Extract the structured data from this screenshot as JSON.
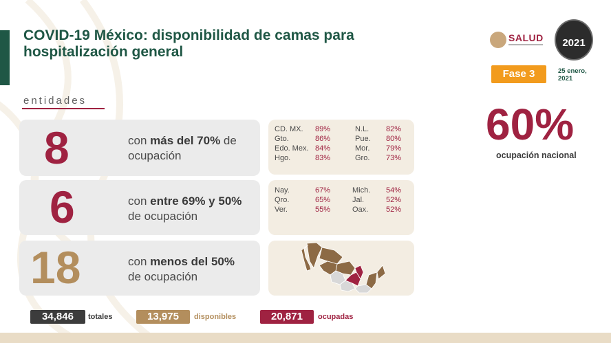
{
  "header": {
    "title_line1": "COVID-19 México: disponibilidad de camas para",
    "title_line2": "hospitalización general",
    "section_label": "entidades"
  },
  "logos": {
    "salud": "SALUD",
    "seal_year": "2021"
  },
  "phase": {
    "label": "Fase 3"
  },
  "date": {
    "line1": "25 enero,",
    "line2": "2021"
  },
  "national": {
    "value": "60%",
    "label": "ocupación nacional"
  },
  "rows": [
    {
      "count": "8",
      "count_color": "#9f2241",
      "text_pre": "con ",
      "text_bold": "más del 70%",
      "text_post": " de",
      "text_line2": "ocupación",
      "states_left": [
        {
          "name": "CD. MX.",
          "pct": "89%"
        },
        {
          "name": "Gto.",
          "pct": "86%"
        },
        {
          "name": "Edo. Mex.",
          "pct": "84%"
        },
        {
          "name": "Hgo.",
          "pct": "83%"
        }
      ],
      "states_right": [
        {
          "name": "N.L.",
          "pct": "82%"
        },
        {
          "name": "Pue.",
          "pct": "80%"
        },
        {
          "name": "Mor.",
          "pct": "79%"
        },
        {
          "name": "Gro.",
          "pct": "73%"
        }
      ]
    },
    {
      "count": "6",
      "count_color": "#9f2241",
      "text_pre": "con ",
      "text_bold": "entre 69% y 50%",
      "text_post": "",
      "text_line2": "de ocupación",
      "states_left": [
        {
          "name": "Nay.",
          "pct": "67%"
        },
        {
          "name": "Qro.",
          "pct": "65%"
        },
        {
          "name": "Ver.",
          "pct": "55%"
        }
      ],
      "states_right": [
        {
          "name": "Mich.",
          "pct": "54%"
        },
        {
          "name": "Jal.",
          "pct": "52%"
        },
        {
          "name": "Oax.",
          "pct": "52%"
        }
      ]
    },
    {
      "count": "18",
      "count_color": "#b38e5d",
      "text_pre": "con ",
      "text_bold": "menos del 50%",
      "text_post": "",
      "text_line2": "de ocupación"
    }
  ],
  "totals": {
    "total_value": "34,846",
    "total_label": "totales",
    "total_color": "#3c3c3c",
    "available_value": "13,975",
    "available_label": "disponibles",
    "available_color": "#b38e5d",
    "occupied_value": "20,871",
    "occupied_label": "ocupadas",
    "occupied_color": "#9f2241"
  }
}
